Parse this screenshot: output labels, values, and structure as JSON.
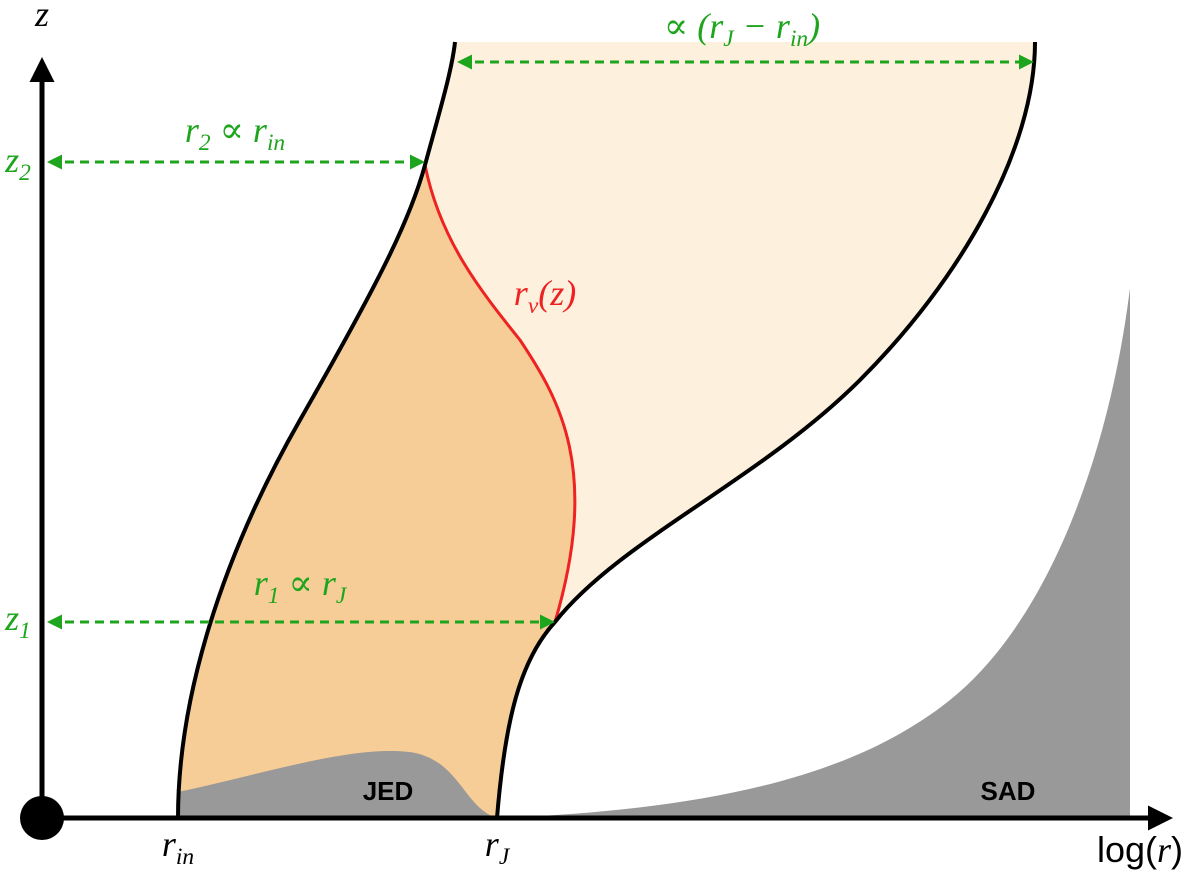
{
  "axes": {
    "y_label": [
      {
        "text": "z"
      }
    ],
    "x_label": [
      {
        "text": "log("
      },
      {
        "text": "r",
        "italic": true
      },
      {
        "text": ")"
      }
    ]
  },
  "x_ticks": [
    [
      {
        "text": "r"
      },
      {
        "text": "in",
        "sub": true
      }
    ],
    [
      {
        "text": "r"
      },
      {
        "text": "J",
        "sub": true
      }
    ]
  ],
  "y_ticks": [
    [
      {
        "text": "z"
      },
      {
        "text": "1",
        "sub": true
      }
    ],
    [
      {
        "text": "z"
      },
      {
        "text": "2",
        "sub": true
      }
    ]
  ],
  "regions": [
    "JED",
    "SAD"
  ],
  "curve_label": [
    {
      "text": "r"
    },
    {
      "text": "ν",
      "sub": true
    },
    {
      "text": "(z)"
    }
  ],
  "annotations": [
    [
      {
        "text": "r"
      },
      {
        "text": "2",
        "sub": true
      },
      {
        "text": " ∝ r"
      },
      {
        "text": "in",
        "sub": true
      }
    ],
    [
      {
        "text": "r"
      },
      {
        "text": "1",
        "sub": true
      },
      {
        "text": " ∝ r"
      },
      {
        "text": "J",
        "sub": true
      }
    ],
    [
      {
        "text": "∝ (r"
      },
      {
        "text": "J",
        "sub": true
      },
      {
        "text": " − r"
      },
      {
        "text": "in",
        "sub": true
      },
      {
        "text": ")"
      }
    ]
  ]
}
